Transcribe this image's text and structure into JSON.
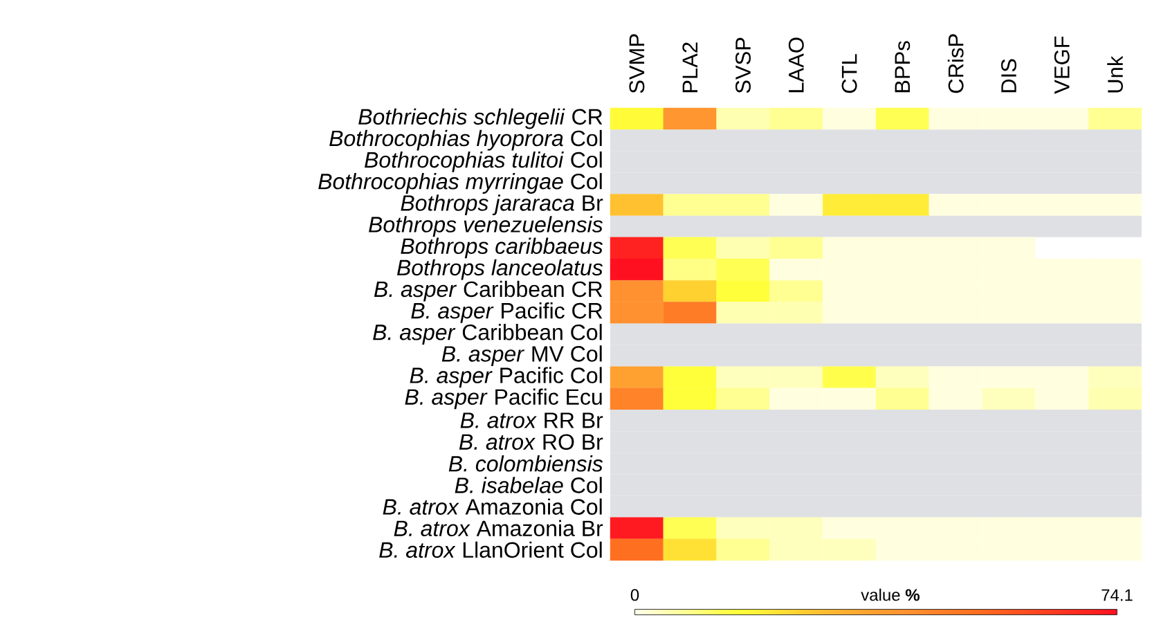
{
  "chart_data": {
    "type": "heatmap",
    "categories": [
      "SVMP",
      "PLA2",
      "SVSP",
      "LAAO",
      "CTL",
      "BPPs",
      "CRisP",
      "DIS",
      "VEGF",
      "Unk"
    ],
    "y_categories": [
      "*Bothriechis schlegelii* CR",
      "*Bothrocophias hyoprora* Col",
      "*Bothrocophias tulitoi* Col",
      "*Bothrocophias myrringae* Col",
      "*Bothrops jararaca* Br",
      "*Bothrops venezuelensis*",
      "*Bothrops caribbaeus*",
      "*Bothrops lanceolatus*",
      "*B. asper* Caribbean CR",
      "*B. asper* Pacific CR",
      "*B. asper* Caribbean Col",
      "*B. asper* MV Col",
      "*B. asper* Pacific Col",
      "*B. asper* Pacific Ecu",
      "*B. atrox* RR Br",
      "*B. atrox* RO Br",
      "*B. colombiensis*",
      "*B. isabelae* Col",
      "*B. atrox* Amazonia Col",
      "*B. atrox* Amazonia Br",
      "*B. atrox* LlanOrient Col"
    ],
    "cells": [
      [
        17,
        40,
        5,
        8,
        1,
        13,
        1,
        1,
        1,
        8
      ],
      [
        null,
        null,
        null,
        null,
        null,
        null,
        null,
        null,
        null,
        null
      ],
      [
        null,
        null,
        null,
        null,
        null,
        null,
        null,
        null,
        null,
        null
      ],
      [
        null,
        null,
        null,
        null,
        null,
        null,
        null,
        null,
        null,
        null
      ],
      [
        28,
        8,
        8,
        1,
        20,
        20,
        1,
        1,
        1,
        1
      ],
      [
        null,
        null,
        null,
        null,
        null,
        null,
        null,
        null,
        null,
        null
      ],
      [
        70,
        13,
        5,
        8,
        1,
        1,
        1,
        1,
        null,
        null
      ],
      [
        74.1,
        9,
        13,
        1,
        1,
        1,
        1,
        1,
        1,
        1
      ],
      [
        42,
        25,
        16,
        8,
        1,
        1,
        1,
        1,
        1,
        1
      ],
      [
        42,
        48,
        5,
        5,
        1,
        1,
        1,
        1,
        1,
        1
      ],
      [
        null,
        null,
        null,
        null,
        null,
        null,
        null,
        null,
        null,
        null
      ],
      [
        null,
        null,
        null,
        null,
        null,
        null,
        null,
        null,
        null,
        null
      ],
      [
        36,
        16,
        4,
        4,
        14,
        4,
        1,
        1,
        1,
        4
      ],
      [
        46,
        16,
        8,
        1,
        1,
        8,
        1,
        4,
        1,
        5
      ],
      [
        null,
        null,
        null,
        null,
        null,
        null,
        null,
        null,
        null,
        null
      ],
      [
        null,
        null,
        null,
        null,
        null,
        null,
        null,
        null,
        null,
        null
      ],
      [
        null,
        null,
        null,
        null,
        null,
        null,
        null,
        null,
        null,
        null
      ],
      [
        null,
        null,
        null,
        null,
        null,
        null,
        null,
        null,
        null,
        null
      ],
      [
        null,
        null,
        null,
        null,
        null,
        null,
        null,
        null,
        null,
        null
      ],
      [
        72,
        13,
        4,
        4,
        1,
        1,
        1,
        1,
        1,
        1
      ],
      [
        52,
        22,
        8,
        4,
        4,
        1,
        1,
        1,
        1,
        1
      ]
    ],
    "clim": [
      0,
      74.1
    ],
    "cticks": [
      0,
      74.1
    ],
    "clabel": "value **%**"
  }
}
